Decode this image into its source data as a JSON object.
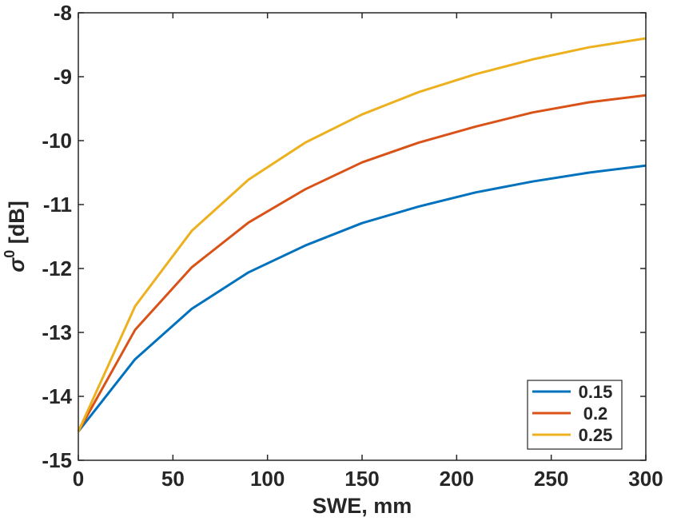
{
  "chart_data": {
    "type": "line",
    "title": "",
    "xlabel": "SWE, mm",
    "ylabel_base": "σ",
    "ylabel_sup": "0",
    "ylabel_unit": " [dB]",
    "xlim": [
      0,
      300
    ],
    "ylim": [
      -15,
      -8
    ],
    "xticks": [
      0,
      50,
      100,
      150,
      200,
      250,
      300
    ],
    "yticks": [
      -15,
      -14,
      -13,
      -12,
      -11,
      -10,
      -9,
      -8
    ],
    "grid": false,
    "legend_position": "bottom-right",
    "x": [
      0,
      30,
      60,
      90,
      120,
      150,
      180,
      210,
      240,
      270,
      300
    ],
    "series": [
      {
        "name": "0.15",
        "color": "#0072BD",
        "values": [
          -14.55,
          -13.42,
          -12.63,
          -12.06,
          -11.64,
          -11.29,
          -11.03,
          -10.81,
          -10.64,
          -10.5,
          -10.39
        ]
      },
      {
        "name": "0.2",
        "color": "#D95319",
        "values": [
          -14.55,
          -12.96,
          -11.98,
          -11.28,
          -10.76,
          -10.34,
          -10.03,
          -9.78,
          -9.56,
          -9.4,
          -9.29
        ]
      },
      {
        "name": "0.25",
        "color": "#EDB120",
        "values": [
          -14.55,
          -12.59,
          -11.41,
          -10.61,
          -10.03,
          -9.59,
          -9.24,
          -8.96,
          -8.73,
          -8.54,
          -8.4
        ]
      }
    ]
  }
}
